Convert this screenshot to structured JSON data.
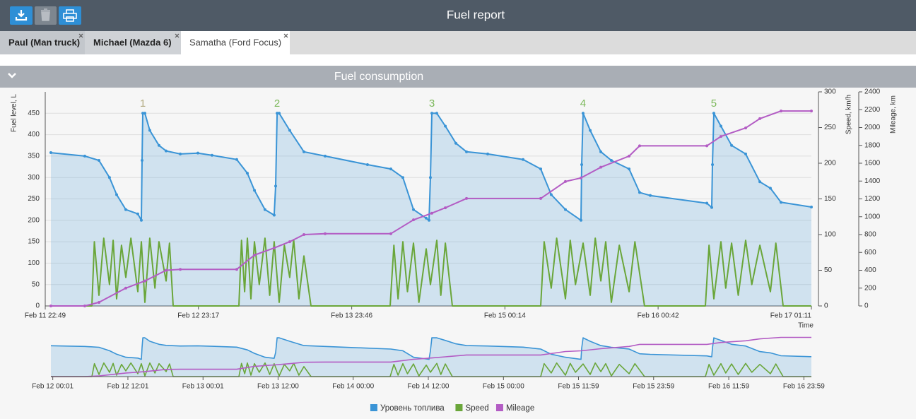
{
  "header": {
    "title": "Fuel report"
  },
  "tabs": [
    {
      "label": "Paul (Man truck)",
      "active": false
    },
    {
      "label": "Michael (Mazda 6)",
      "active": false
    },
    {
      "label": "Samatha (Ford Focus)",
      "active": true
    }
  ],
  "section": {
    "title": "Fuel consumption"
  },
  "chart_data": {
    "type": "line",
    "xlabel": "Time",
    "xlim": [
      "Feb 11 22:49",
      "Feb 17 01:11"
    ],
    "xticks": [
      "Feb 11 22:49",
      "Feb 12 23:17",
      "Feb 13 23:46",
      "Feb 15 00:14",
      "Feb 16 00:42",
      "Feb 17 01:11"
    ],
    "ylabel": "Fuel level, L",
    "ylim": [
      0,
      500
    ],
    "yticks": [
      0,
      50,
      100,
      150,
      200,
      250,
      300,
      350,
      400,
      450
    ],
    "y2label": "Speed, km/h",
    "y2lim": [
      0,
      300
    ],
    "y2ticks": [
      0,
      50,
      100,
      150,
      200,
      250,
      300
    ],
    "y3label": "Mileage, km",
    "y3lim": [
      0,
      2400
    ],
    "y3ticks": [
      0,
      200,
      400,
      600,
      800,
      1000,
      1200,
      1400,
      1600,
      1800,
      2000,
      2200,
      2400
    ],
    "grid": true,
    "legend": "bottom",
    "annotations": [
      {
        "text": "1",
        "x": "Feb 12 14:24",
        "y": 472,
        "color": "#b2aa80"
      },
      {
        "text": "2",
        "x": "Feb 13 11:51",
        "y": 472,
        "color": "#7bb85a"
      },
      {
        "text": "3",
        "x": "Feb 14 12:34",
        "y": 472,
        "color": "#7bb85a"
      },
      {
        "text": "4",
        "x": "Feb 15 12:43",
        "y": 472,
        "color": "#7bb85a"
      },
      {
        "text": "5",
        "x": "Feb 16 09:36",
        "y": 472,
        "color": "#7bb85a"
      }
    ],
    "series": [
      {
        "name": "Уровень топлива",
        "color": "#3a94d6",
        "axis": "y",
        "area": true,
        "markers": true,
        "x": [
          "Feb 11 23:43",
          "Feb 12 05:08",
          "Feb 12 07:24",
          "Feb 12 09:05",
          "Feb 12 10:13",
          "Feb 12 11:41",
          "Feb 12 13:36",
          "Feb 12 14:10",
          "Feb 12 14:17",
          "Feb 12 14:24",
          "Feb 12 14:44",
          "Feb 12 15:31",
          "Feb 12 16:59",
          "Feb 12 18:07",
          "Feb 12 20:23",
          "Feb 12 23:12",
          "Feb 13 01:27",
          "Feb 13 05:24",
          "Feb 13 07:06",
          "Feb 13 08:14",
          "Feb 13 09:55",
          "Feb 13 11:23",
          "Feb 13 11:37",
          "Feb 13 11:51",
          "Feb 13 12:11",
          "Feb 13 13:52",
          "Feb 13 16:08",
          "Feb 13 19:31",
          "Feb 14 02:17",
          "Feb 14 06:01",
          "Feb 14 07:56",
          "Feb 14 09:38",
          "Feb 14 11:40",
          "Feb 14 12:07",
          "Feb 14 12:20",
          "Feb 14 12:34",
          "Feb 14 13:21",
          "Feb 14 14:43",
          "Feb 14 16:24",
          "Feb 14 18:06",
          "Feb 14 21:29",
          "Feb 15 03:08",
          "Feb 15 05:57",
          "Feb 15 07:38",
          "Feb 15 09:54",
          "Feb 15 12:23",
          "Feb 15 12:30",
          "Feb 15 12:43",
          "Feb 15 13:51",
          "Feb 15 15:33",
          "Feb 15 17:14",
          "Feb 15 20:04",
          "Feb 15 21:45",
          "Feb 15 23:27",
          "Feb 16 08:29",
          "Feb 16 09:16",
          "Feb 16 09:23",
          "Feb 16 09:36",
          "Feb 16 10:44",
          "Feb 16 12:26",
          "Feb 16 14:41",
          "Feb 16 16:57",
          "Feb 16 18:38",
          "Feb 16 20:20",
          "Feb 17 01:11"
        ],
        "values": [
          358,
          350,
          340,
          300,
          260,
          225,
          215,
          200,
          340,
          450,
          450,
          410,
          375,
          362,
          355,
          357,
          352,
          342,
          310,
          270,
          225,
          212,
          280,
          450,
          450,
          410,
          360,
          350,
          330,
          320,
          300,
          225,
          205,
          200,
          300,
          450,
          450,
          420,
          380,
          360,
          355,
          342,
          320,
          260,
          225,
          200,
          330,
          450,
          410,
          360,
          340,
          320,
          265,
          258,
          240,
          230,
          330,
          450,
          420,
          375,
          355,
          290,
          275,
          242,
          231
        ]
      },
      {
        "name": "Speed",
        "color": "#6aa63a",
        "axis": "y2",
        "area": false,
        "markers": false,
        "x": [
          "Feb 11 23:43",
          "Feb 12 06:16",
          "Feb 12 06:40",
          "Feb 12 07:24",
          "Feb 12 08:10",
          "Feb 12 09:05",
          "Feb 12 09:40",
          "Feb 12 10:13",
          "Feb 12 11:00",
          "Feb 12 11:41",
          "Feb 12 12:30",
          "Feb 12 13:36",
          "Feb 12 14:10",
          "Feb 12 14:44",
          "Feb 12 15:31",
          "Feb 12 16:20",
          "Feb 12 16:59",
          "Feb 12 18:07",
          "Feb 12 18:40",
          "Feb 12 19:15",
          "Feb 13 05:45",
          "Feb 13 06:10",
          "Feb 13 06:40",
          "Feb 13 07:06",
          "Feb 13 07:40",
          "Feb 13 08:14",
          "Feb 13 09:00",
          "Feb 13 09:55",
          "Feb 13 10:40",
          "Feb 13 11:23",
          "Feb 13 12:11",
          "Feb 13 13:00",
          "Feb 13 13:52",
          "Feb 13 14:30",
          "Feb 13 15:20",
          "Feb 13 16:08",
          "Feb 13 17:16",
          "Feb 14 05:54",
          "Feb 14 06:30",
          "Feb 14 07:10",
          "Feb 14 07:56",
          "Feb 14 08:40",
          "Feb 14 09:38",
          "Feb 14 10:30",
          "Feb 14 11:40",
          "Feb 14 12:20",
          "Feb 14 13:21",
          "Feb 14 14:00",
          "Feb 14 14:43",
          "Feb 14 15:50",
          "Feb 15 05:57",
          "Feb 15 06:30",
          "Feb 15 07:38",
          "Feb 15 08:30",
          "Feb 15 09:54",
          "Feb 15 10:40",
          "Feb 15 11:30",
          "Feb 15 12:43",
          "Feb 15 13:51",
          "Feb 15 14:40",
          "Feb 15 15:33",
          "Feb 15 16:20",
          "Feb 15 17:14",
          "Feb 15 18:30",
          "Feb 15 20:04",
          "Feb 15 21:00",
          "Feb 15 22:32",
          "Feb 16 08:15",
          "Feb 16 08:50",
          "Feb 16 09:36",
          "Feb 16 10:44",
          "Feb 16 11:30",
          "Feb 16 12:26",
          "Feb 16 13:30",
          "Feb 16 14:41",
          "Feb 16 15:40",
          "Feb 16 16:57",
          "Feb 16 18:38",
          "Feb 16 19:30",
          "Feb 16 20:40",
          "Feb 17 01:11"
        ],
        "values": [
          0,
          0,
          90,
          15,
          95,
          30,
          92,
          10,
          85,
          40,
          95,
          20,
          90,
          5,
          95,
          25,
          90,
          35,
          88,
          0,
          0,
          92,
          20,
          95,
          10,
          90,
          30,
          95,
          15,
          90,
          5,
          85,
          40,
          93,
          10,
          70,
          0,
          0,
          85,
          10,
          90,
          20,
          88,
          5,
          80,
          30,
          92,
          15,
          88,
          0,
          0,
          90,
          25,
          95,
          10,
          92,
          30,
          88,
          15,
          95,
          35,
          90,
          5,
          85,
          20,
          90,
          0,
          0,
          85,
          10,
          90,
          25,
          88,
          15,
          92,
          30,
          85,
          20,
          88,
          0,
          0
        ]
      },
      {
        "name": "Mileage",
        "color": "#b35cc4",
        "axis": "y3",
        "area": false,
        "markers": true,
        "x": [
          "Feb 11 23:43",
          "Feb 12 05:08",
          "Feb 12 07:24",
          "Feb 12 11:41",
          "Feb 12 14:44",
          "Feb 12 18:07",
          "Feb 12 20:23",
          "Feb 13 05:24",
          "Feb 13 08:14",
          "Feb 13 11:23",
          "Feb 13 13:52",
          "Feb 13 16:08",
          "Feb 13 19:31",
          "Feb 14 06:01",
          "Feb 14 09:38",
          "Feb 14 12:34",
          "Feb 14 14:43",
          "Feb 14 18:06",
          "Feb 15 05:57",
          "Feb 15 09:54",
          "Feb 15 12:23",
          "Feb 15 15:33",
          "Feb 15 20:04",
          "Feb 15 21:45",
          "Feb 16 08:29",
          "Feb 16 10:44",
          "Feb 16 14:41",
          "Feb 16 16:57",
          "Feb 16 20:20",
          "Feb 17 01:11"
        ],
        "values": [
          0,
          0,
          40,
          200,
          280,
          400,
          410,
          410,
          570,
          650,
          720,
          800,
          810,
          810,
          965,
          1040,
          1100,
          1205,
          1205,
          1395,
          1435,
          1555,
          1680,
          1795,
          1795,
          1900,
          1995,
          2100,
          2185,
          2185
        ]
      }
    ],
    "navigator": {
      "xlim": [
        "Feb 11 23:43",
        "Feb 17 01:11"
      ],
      "xticks": [
        "Feb 12 00:01",
        "Feb 12 12:01",
        "Feb 13 00:01",
        "Feb 13 12:00",
        "Feb 14 00:00",
        "Feb 14 12:00",
        "Feb 15 00:00",
        "Feb 15 11:59",
        "Feb 15 23:59",
        "Feb 16 11:59",
        "Feb 16 23:59"
      ]
    }
  }
}
